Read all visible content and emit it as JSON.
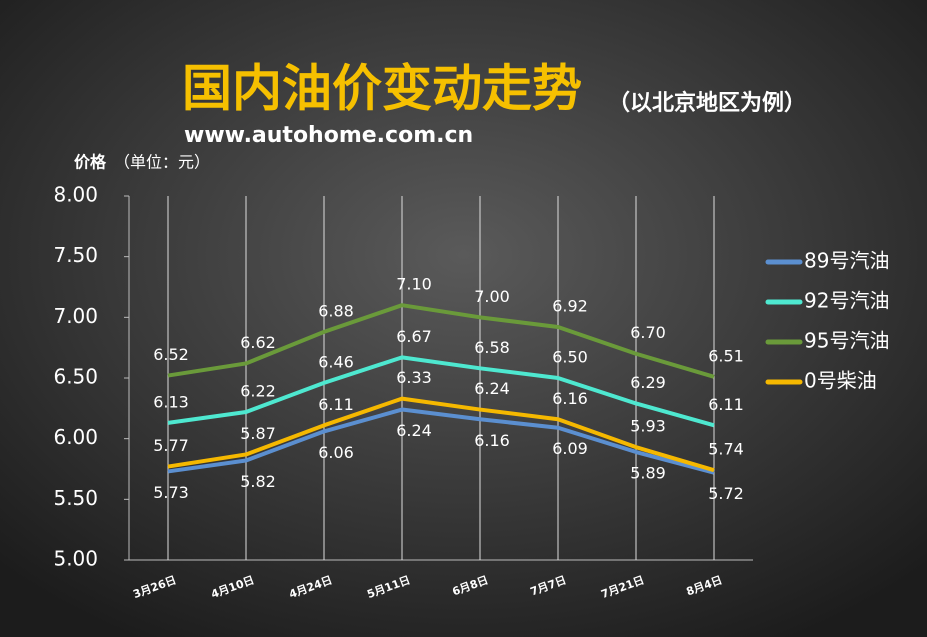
{
  "chart_data": {
    "type": "line",
    "title": "国内油价变动走势",
    "subtitle": "（以北京地区为例）",
    "source": "www.autohome.com.cn",
    "y_label": "价格",
    "y_unit": "（单位：元）",
    "categories": [
      "3月26日",
      "4月10日",
      "4月24日",
      "5月11日",
      "6月8日",
      "7月7日",
      "7月21日",
      "8月4日"
    ],
    "series": [
      {
        "name": "89号汽油",
        "color": "#5b8fd0",
        "values": [
          5.73,
          5.82,
          6.06,
          6.24,
          6.16,
          6.09,
          5.89,
          5.72
        ],
        "value_labels": [
          "5.73",
          "5.82",
          "6.06",
          "6.24",
          "6.16",
          "6.09",
          "5.89",
          "5.72"
        ],
        "label_side": "below"
      },
      {
        "name": "92号汽油",
        "color": "#4ee8d0",
        "values": [
          6.13,
          6.22,
          6.46,
          6.67,
          6.58,
          6.5,
          6.29,
          6.11
        ],
        "value_labels": [
          "6.13",
          "6.22",
          "6.46",
          "6.67",
          "6.58",
          "6.50",
          "6.29",
          "6.11"
        ],
        "label_side": "above"
      },
      {
        "name": "95号汽油",
        "color": "#6a9a3a",
        "values": [
          6.52,
          6.62,
          6.88,
          7.1,
          7.0,
          6.92,
          6.7,
          6.51
        ],
        "value_labels": [
          "6.52",
          "6.62",
          "6.88",
          "7.10",
          "7.00",
          "6.92",
          "6.70",
          "6.51"
        ],
        "label_side": "above"
      },
      {
        "name": "0号柴油",
        "color": "#f5b800",
        "values": [
          5.77,
          5.87,
          6.11,
          6.33,
          6.24,
          6.16,
          5.93,
          5.74
        ],
        "value_labels": [
          "5.77",
          "5.87",
          "6.11",
          "6.33",
          "6.24",
          "6.16",
          "5.93",
          "5.74"
        ],
        "label_side": "above"
      }
    ],
    "ylim": [
      5,
      8
    ],
    "yticks": [
      {
        "value": 5,
        "label": "5.00"
      },
      {
        "value": 5.5,
        "label": "5.50"
      },
      {
        "value": 6,
        "label": "6.00"
      },
      {
        "value": 6.5,
        "label": "6.50"
      },
      {
        "value": 7,
        "label": "7.00"
      },
      {
        "value": 7.5,
        "label": "7.50"
      },
      {
        "value": 8,
        "label": "8.00"
      }
    ],
    "grid": "vertical",
    "legend": "right"
  }
}
